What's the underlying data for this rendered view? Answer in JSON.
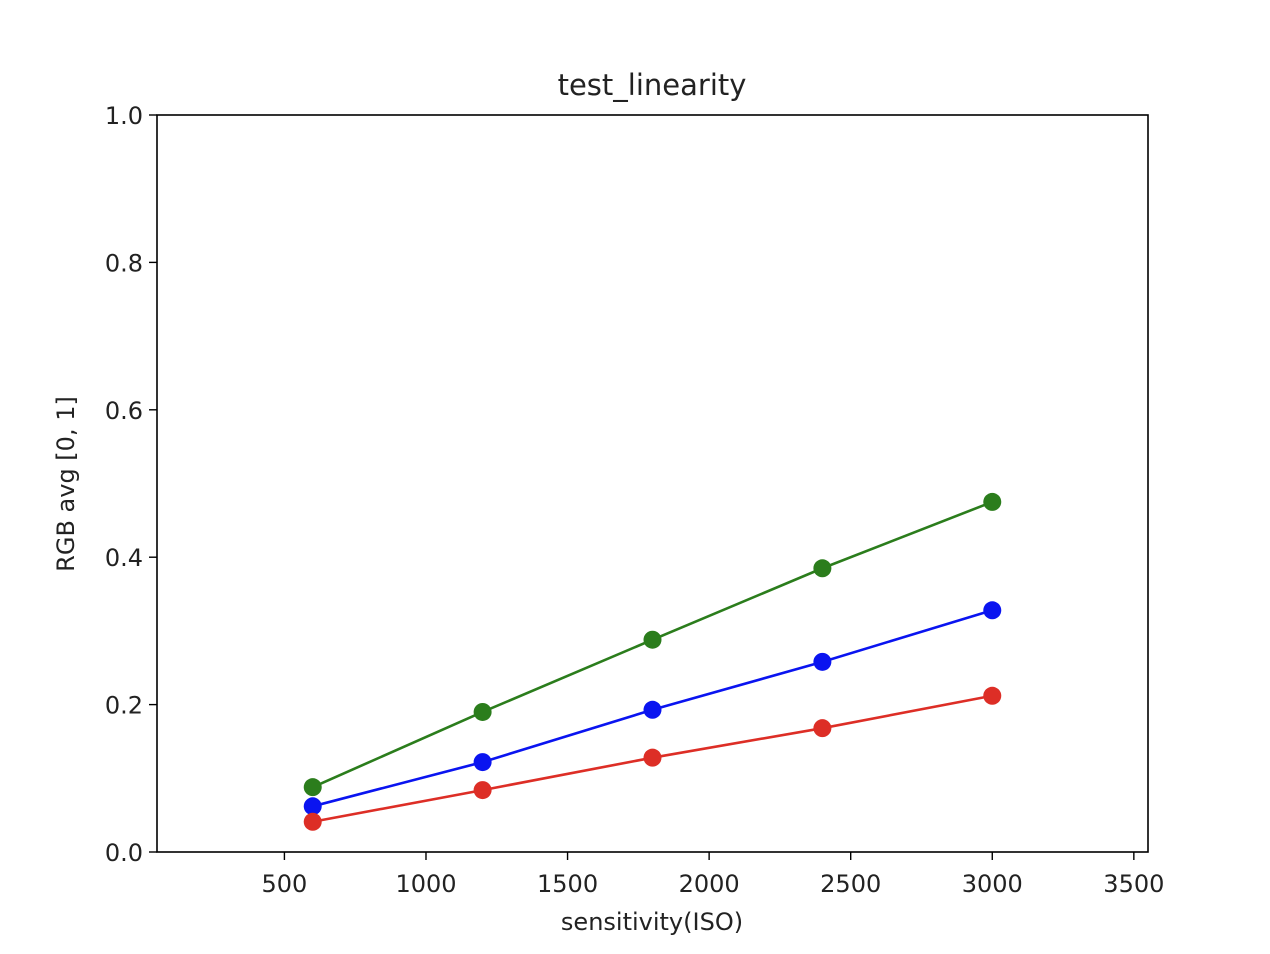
{
  "chart_data": {
    "type": "line",
    "title": "test_linearity",
    "xlabel": "sensitivity(ISO)",
    "ylabel": "RGB avg [0, 1]",
    "xlim": [
      50,
      3550
    ],
    "ylim": [
      0.0,
      1.0
    ],
    "xticks": [
      500,
      1000,
      1500,
      2000,
      2500,
      3000,
      3500
    ],
    "xtick_labels": [
      "500",
      "1000",
      "1500",
      "2000",
      "2500",
      "3000",
      "3500"
    ],
    "yticks": [
      0.0,
      0.2,
      0.4,
      0.6,
      0.8,
      1.0
    ],
    "ytick_labels": [
      "0.0",
      "0.2",
      "0.4",
      "0.6",
      "0.8",
      "1.0"
    ],
    "grid": false,
    "x": [
      600,
      1200,
      1800,
      2400,
      3000
    ],
    "series": [
      {
        "color": "#2b7d1c",
        "values": [
          0.088,
          0.19,
          0.288,
          0.385,
          0.475
        ]
      },
      {
        "color": "#0a14f0",
        "values": [
          0.062,
          0.122,
          0.193,
          0.258,
          0.328
        ]
      },
      {
        "color": "#dd2e26",
        "values": [
          0.041,
          0.084,
          0.128,
          0.168,
          0.212
        ]
      }
    ]
  }
}
